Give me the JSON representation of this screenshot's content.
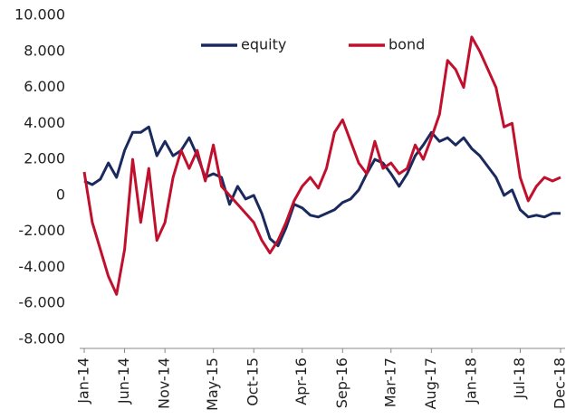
{
  "chart_data": {
    "type": "line",
    "categories": [
      "Jan-14",
      null,
      null,
      null,
      null,
      "Jun-14",
      null,
      null,
      null,
      null,
      "Nov-14",
      null,
      null,
      null,
      null,
      null,
      "May-15",
      null,
      null,
      null,
      null,
      "Oct-15",
      null,
      null,
      null,
      null,
      null,
      "Apr-16",
      null,
      null,
      null,
      null,
      "Sep-16",
      null,
      null,
      null,
      null,
      null,
      "Mar-17",
      null,
      null,
      null,
      null,
      "Aug-17",
      null,
      null,
      null,
      null,
      "Jan-18",
      null,
      null,
      null,
      null,
      null,
      "Jul-18",
      null,
      null,
      null,
      null,
      "Dec-18"
    ],
    "series": [
      {
        "name": "equity",
        "color": "#1b2a5e",
        "values": [
          800,
          600,
          900,
          1800,
          1000,
          2500,
          3500,
          3500,
          3800,
          2200,
          3000,
          2200,
          2500,
          3200,
          2200,
          1000,
          1200,
          1000,
          -500,
          500,
          -200,
          0,
          -1000,
          -2400,
          -2800,
          -1800,
          -500,
          -700,
          -1100,
          -1200,
          -1000,
          -800,
          -400,
          -200,
          300,
          1200,
          2000,
          1800,
          1200,
          500,
          1200,
          2200,
          2800,
          3500,
          3000,
          3200,
          2800,
          3200,
          2600,
          2200,
          1600,
          1000,
          0,
          300,
          -800,
          -1200,
          -1100,
          -1200,
          -1000,
          -1000
        ]
      },
      {
        "name": "bond",
        "color": "#c0102e",
        "values": [
          1300,
          -1500,
          -3000,
          -4500,
          -5500,
          -3000,
          2000,
          -1500,
          1500,
          -2500,
          -1500,
          1000,
          2500,
          1500,
          2500,
          800,
          2800,
          500,
          0,
          -500,
          -1000,
          -1500,
          -2500,
          -3200,
          -2500,
          -1500,
          -300,
          500,
          1000,
          400,
          1500,
          3500,
          4200,
          3000,
          1800,
          1200,
          3000,
          1500,
          1800,
          1200,
          1500,
          2800,
          2000,
          3200,
          4500,
          7500,
          7000,
          6000,
          8800,
          8000,
          7000,
          6000,
          3800,
          4000,
          1000,
          -300,
          500,
          1000,
          800,
          1000
        ]
      }
    ],
    "ylim": [
      -8000,
      10000
    ],
    "yticks": [
      {
        "value": -8000,
        "label": "-8.000"
      },
      {
        "value": -6000,
        "label": "-6.000"
      },
      {
        "value": -4000,
        "label": "-4.000"
      },
      {
        "value": -2000,
        "label": "-2.000"
      },
      0,
      {
        "value": 2000,
        "label": "2.000"
      },
      {
        "value": 4000,
        "label": "4.000"
      },
      {
        "value": 6000,
        "label": "6.000"
      },
      {
        "value": 8000,
        "label": "8.000"
      },
      {
        "value": 10000,
        "label": "10.000"
      }
    ],
    "grid": false,
    "legend": "top"
  }
}
